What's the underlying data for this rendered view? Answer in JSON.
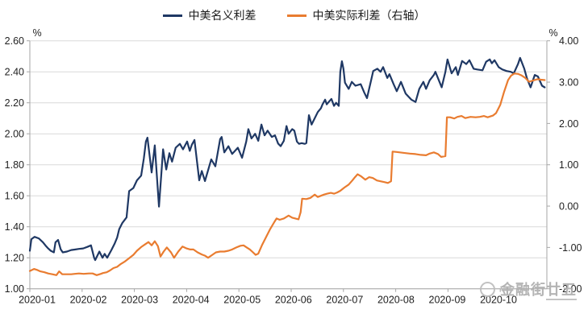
{
  "legend": {
    "items": [
      {
        "label": "中美名义利差",
        "color": "#1F3864"
      },
      {
        "label": "中美实际利差（右轴）",
        "color": "#E97C30"
      }
    ]
  },
  "watermark": {
    "logo": "circle-logo",
    "text": "金融街",
    "text_underlined": "廿五"
  },
  "chart_data": {
    "type": "line",
    "title": "",
    "grid": true,
    "legend_position": "top",
    "grid_color": "#D9D9D9",
    "axis_color": "#A6A6A6",
    "x_axis": {
      "categories": [
        "2020-01",
        "2020-02",
        "2020-03",
        "2020-04",
        "2020-05",
        "2020-06",
        "2020-07",
        "2020-08",
        "2020-09",
        "2020-10"
      ]
    },
    "left_axis": {
      "unit": "%",
      "min": 1.0,
      "max": 2.6,
      "step": 0.2,
      "ticks": [
        "2.60",
        "2.40",
        "2.20",
        "2.00",
        "1.80",
        "1.60",
        "1.40",
        "1.20",
        "1.00"
      ]
    },
    "right_axis": {
      "unit": "%",
      "min": -2.0,
      "max": 4.0,
      "step": 1.0,
      "ticks": [
        "4.00",
        "3.00",
        "2.00",
        "1.00",
        "0.00",
        "-1.00",
        "-2.00"
      ]
    },
    "x_unit": "months_since_2020_01",
    "series": [
      {
        "name": "中美名义利差",
        "axis": "left",
        "color": "#1F3864",
        "points": [
          [
            0.0,
            1.245
          ],
          [
            0.03,
            1.32
          ],
          [
            0.09,
            1.335
          ],
          [
            0.17,
            1.325
          ],
          [
            0.25,
            1.3
          ],
          [
            0.31,
            1.275
          ],
          [
            0.35,
            1.26
          ],
          [
            0.4,
            1.245
          ],
          [
            0.46,
            1.235
          ],
          [
            0.49,
            1.3
          ],
          [
            0.54,
            1.315
          ],
          [
            0.59,
            1.255
          ],
          [
            0.63,
            1.235
          ],
          [
            0.71,
            1.24
          ],
          [
            0.79,
            1.25
          ],
          [
            0.86,
            1.253
          ],
          [
            0.94,
            1.257
          ],
          [
            1.02,
            1.26
          ],
          [
            1.1,
            1.27
          ],
          [
            1.17,
            1.28
          ],
          [
            1.23,
            1.2
          ],
          [
            1.25,
            1.185
          ],
          [
            1.33,
            1.24
          ],
          [
            1.39,
            1.2
          ],
          [
            1.43,
            1.225
          ],
          [
            1.48,
            1.2
          ],
          [
            1.56,
            1.25
          ],
          [
            1.62,
            1.29
          ],
          [
            1.67,
            1.33
          ],
          [
            1.71,
            1.385
          ],
          [
            1.77,
            1.425
          ],
          [
            1.85,
            1.46
          ],
          [
            1.9,
            1.63
          ],
          [
            1.98,
            1.65
          ],
          [
            2.05,
            1.7
          ],
          [
            2.13,
            1.73
          ],
          [
            2.18,
            1.84
          ],
          [
            2.22,
            1.95
          ],
          [
            2.25,
            1.975
          ],
          [
            2.33,
            1.75
          ],
          [
            2.39,
            1.925
          ],
          [
            2.47,
            1.53
          ],
          [
            2.55,
            1.9
          ],
          [
            2.61,
            1.77
          ],
          [
            2.67,
            1.875
          ],
          [
            2.72,
            1.82
          ],
          [
            2.79,
            1.91
          ],
          [
            2.87,
            1.935
          ],
          [
            2.93,
            1.9
          ],
          [
            3.01,
            1.95
          ],
          [
            3.06,
            1.89
          ],
          [
            3.1,
            1.93
          ],
          [
            3.15,
            1.96
          ],
          [
            3.24,
            1.7
          ],
          [
            3.29,
            1.76
          ],
          [
            3.35,
            1.695
          ],
          [
            3.47,
            1.835
          ],
          [
            3.55,
            1.79
          ],
          [
            3.64,
            1.965
          ],
          [
            3.67,
            1.98
          ],
          [
            3.72,
            1.88
          ],
          [
            3.8,
            1.92
          ],
          [
            3.87,
            1.87
          ],
          [
            3.98,
            1.91
          ],
          [
            4.06,
            1.845
          ],
          [
            4.14,
            1.95
          ],
          [
            4.18,
            2.03
          ],
          [
            4.24,
            1.97
          ],
          [
            4.31,
            2.0
          ],
          [
            4.37,
            1.955
          ],
          [
            4.43,
            2.06
          ],
          [
            4.49,
            1.99
          ],
          [
            4.55,
            2.02
          ],
          [
            4.63,
            1.98
          ],
          [
            4.69,
            1.99
          ],
          [
            4.75,
            1.937
          ],
          [
            4.8,
            1.92
          ],
          [
            4.86,
            1.955
          ],
          [
            4.91,
            2.05
          ],
          [
            4.95,
            2.0
          ],
          [
            5.02,
            2.03
          ],
          [
            5.06,
            2.02
          ],
          [
            5.11,
            1.95
          ],
          [
            5.15,
            1.935
          ],
          [
            5.2,
            1.94
          ],
          [
            5.26,
            1.935
          ],
          [
            5.29,
            1.94
          ],
          [
            5.34,
            2.12
          ],
          [
            5.39,
            2.06
          ],
          [
            5.45,
            2.1
          ],
          [
            5.51,
            2.14
          ],
          [
            5.57,
            2.165
          ],
          [
            5.6,
            2.19
          ],
          [
            5.65,
            2.22
          ],
          [
            5.68,
            2.19
          ],
          [
            5.73,
            2.21
          ],
          [
            5.77,
            2.225
          ],
          [
            5.82,
            2.18
          ],
          [
            5.86,
            2.2
          ],
          [
            5.91,
            2.18
          ],
          [
            5.94,
            2.4
          ],
          [
            5.97,
            2.468
          ],
          [
            6.0,
            2.42
          ],
          [
            6.03,
            2.33
          ],
          [
            6.1,
            2.29
          ],
          [
            6.16,
            2.335
          ],
          [
            6.23,
            2.31
          ],
          [
            6.33,
            2.32
          ],
          [
            6.4,
            2.265
          ],
          [
            6.45,
            2.23
          ],
          [
            6.53,
            2.345
          ],
          [
            6.57,
            2.405
          ],
          [
            6.65,
            2.42
          ],
          [
            6.71,
            2.4
          ],
          [
            6.76,
            2.43
          ],
          [
            6.84,
            2.36
          ],
          [
            6.88,
            2.385
          ],
          [
            6.96,
            2.32
          ],
          [
            7.02,
            2.275
          ],
          [
            7.1,
            2.335
          ],
          [
            7.19,
            2.26
          ],
          [
            7.3,
            2.22
          ],
          [
            7.38,
            2.205
          ],
          [
            7.45,
            2.29
          ],
          [
            7.53,
            2.335
          ],
          [
            7.58,
            2.29
          ],
          [
            7.65,
            2.345
          ],
          [
            7.73,
            2.38
          ],
          [
            7.76,
            2.4
          ],
          [
            7.82,
            2.35
          ],
          [
            7.88,
            2.3
          ],
          [
            7.95,
            2.4
          ],
          [
            7.99,
            2.48
          ],
          [
            8.07,
            2.39
          ],
          [
            8.15,
            2.43
          ],
          [
            8.19,
            2.38
          ],
          [
            8.27,
            2.47
          ],
          [
            8.35,
            2.45
          ],
          [
            8.41,
            2.475
          ],
          [
            8.49,
            2.42
          ],
          [
            8.56,
            2.415
          ],
          [
            8.66,
            2.41
          ],
          [
            8.73,
            2.465
          ],
          [
            8.8,
            2.48
          ],
          [
            8.84,
            2.455
          ],
          [
            8.89,
            2.475
          ],
          [
            8.97,
            2.43
          ],
          [
            9.04,
            2.415
          ],
          [
            9.12,
            2.405
          ],
          [
            9.2,
            2.4
          ],
          [
            9.26,
            2.39
          ],
          [
            9.34,
            2.45
          ],
          [
            9.38,
            2.49
          ],
          [
            9.46,
            2.42
          ],
          [
            9.51,
            2.36
          ],
          [
            9.58,
            2.3
          ],
          [
            9.66,
            2.38
          ],
          [
            9.72,
            2.37
          ],
          [
            9.8,
            2.31
          ],
          [
            9.85,
            2.3
          ]
        ]
      },
      {
        "name": "中美实际利差（右轴）",
        "axis": "right",
        "color": "#E97C30",
        "points": [
          [
            0.0,
            -1.57
          ],
          [
            0.08,
            -1.52
          ],
          [
            0.15,
            -1.55
          ],
          [
            0.2,
            -1.58
          ],
          [
            0.28,
            -1.6
          ],
          [
            0.35,
            -1.63
          ],
          [
            0.43,
            -1.65
          ],
          [
            0.51,
            -1.67
          ],
          [
            0.56,
            -1.58
          ],
          [
            0.62,
            -1.65
          ],
          [
            0.69,
            -1.65
          ],
          [
            0.79,
            -1.65
          ],
          [
            0.86,
            -1.64
          ],
          [
            0.94,
            -1.63
          ],
          [
            1.03,
            -1.64
          ],
          [
            1.13,
            -1.63
          ],
          [
            1.2,
            -1.63
          ],
          [
            1.28,
            -1.67
          ],
          [
            1.36,
            -1.64
          ],
          [
            1.4,
            -1.62
          ],
          [
            1.47,
            -1.6
          ],
          [
            1.53,
            -1.56
          ],
          [
            1.6,
            -1.5
          ],
          [
            1.67,
            -1.47
          ],
          [
            1.74,
            -1.4
          ],
          [
            1.82,
            -1.34
          ],
          [
            1.9,
            -1.26
          ],
          [
            1.98,
            -1.18
          ],
          [
            2.05,
            -1.08
          ],
          [
            2.13,
            -0.99
          ],
          [
            2.21,
            -0.92
          ],
          [
            2.27,
            -0.87
          ],
          [
            2.33,
            -0.95
          ],
          [
            2.39,
            -0.85
          ],
          [
            2.45,
            -0.97
          ],
          [
            2.5,
            -1.22
          ],
          [
            2.56,
            -1.1
          ],
          [
            2.62,
            -1.0
          ],
          [
            2.7,
            -1.12
          ],
          [
            2.76,
            -1.25
          ],
          [
            2.84,
            -1.1
          ],
          [
            2.92,
            -0.98
          ],
          [
            2.99,
            -1.02
          ],
          [
            3.07,
            -1.05
          ],
          [
            3.13,
            -1.05
          ],
          [
            3.21,
            -1.12
          ],
          [
            3.29,
            -1.17
          ],
          [
            3.35,
            -1.2
          ],
          [
            3.41,
            -1.25
          ],
          [
            3.49,
            -1.18
          ],
          [
            3.56,
            -1.12
          ],
          [
            3.64,
            -1.1
          ],
          [
            3.72,
            -1.1
          ],
          [
            3.8,
            -1.08
          ],
          [
            3.87,
            -1.05
          ],
          [
            3.95,
            -1.0
          ],
          [
            4.03,
            -0.96
          ],
          [
            4.09,
            -0.95
          ],
          [
            4.15,
            -1.0
          ],
          [
            4.21,
            -1.05
          ],
          [
            4.27,
            -1.12
          ],
          [
            4.32,
            -1.18
          ],
          [
            4.37,
            -1.15
          ],
          [
            4.44,
            -0.95
          ],
          [
            4.52,
            -0.75
          ],
          [
            4.6,
            -0.55
          ],
          [
            4.68,
            -0.38
          ],
          [
            4.72,
            -0.3
          ],
          [
            4.78,
            -0.33
          ],
          [
            4.86,
            -0.3
          ],
          [
            4.95,
            -0.23
          ],
          [
            5.02,
            -0.28
          ],
          [
            5.08,
            -0.3
          ],
          [
            5.14,
            -0.32
          ],
          [
            5.18,
            -0.15
          ],
          [
            5.21,
            0.18
          ],
          [
            5.29,
            0.17
          ],
          [
            5.37,
            0.2
          ],
          [
            5.45,
            0.28
          ],
          [
            5.51,
            0.22
          ],
          [
            5.57,
            0.25
          ],
          [
            5.63,
            0.28
          ],
          [
            5.69,
            0.3
          ],
          [
            5.76,
            0.32
          ],
          [
            5.82,
            0.3
          ],
          [
            5.88,
            0.33
          ],
          [
            5.94,
            0.37
          ],
          [
            6.02,
            0.45
          ],
          [
            6.1,
            0.52
          ],
          [
            6.17,
            0.62
          ],
          [
            6.22,
            0.7
          ],
          [
            6.27,
            0.77
          ],
          [
            6.34,
            0.72
          ],
          [
            6.42,
            0.64
          ],
          [
            6.49,
            0.7
          ],
          [
            6.56,
            0.68
          ],
          [
            6.64,
            0.62
          ],
          [
            6.71,
            0.6
          ],
          [
            6.79,
            0.58
          ],
          [
            6.85,
            0.56
          ],
          [
            6.91,
            0.6
          ],
          [
            6.94,
            1.32
          ],
          [
            7.02,
            1.31
          ],
          [
            7.14,
            1.29
          ],
          [
            7.27,
            1.27
          ],
          [
            7.38,
            1.26
          ],
          [
            7.48,
            1.24
          ],
          [
            7.58,
            1.23
          ],
          [
            7.65,
            1.27
          ],
          [
            7.73,
            1.3
          ],
          [
            7.81,
            1.26
          ],
          [
            7.87,
            1.19
          ],
          [
            7.95,
            1.21
          ],
          [
            7.98,
            2.15
          ],
          [
            8.04,
            2.15
          ],
          [
            8.12,
            2.12
          ],
          [
            8.18,
            2.16
          ],
          [
            8.26,
            2.18
          ],
          [
            8.33,
            2.13
          ],
          [
            8.43,
            2.16
          ],
          [
            8.53,
            2.15
          ],
          [
            8.61,
            2.16
          ],
          [
            8.69,
            2.18
          ],
          [
            8.76,
            2.15
          ],
          [
            8.86,
            2.19
          ],
          [
            8.92,
            2.25
          ],
          [
            9.0,
            2.45
          ],
          [
            9.07,
            2.75
          ],
          [
            9.15,
            3.05
          ],
          [
            9.21,
            3.16
          ],
          [
            9.27,
            3.21
          ],
          [
            9.34,
            3.2
          ],
          [
            9.41,
            3.16
          ],
          [
            9.48,
            3.1
          ],
          [
            9.55,
            3.01
          ],
          [
            9.63,
            3.04
          ],
          [
            9.71,
            3.07
          ],
          [
            9.78,
            3.06
          ],
          [
            9.85,
            3.05
          ]
        ]
      }
    ]
  }
}
